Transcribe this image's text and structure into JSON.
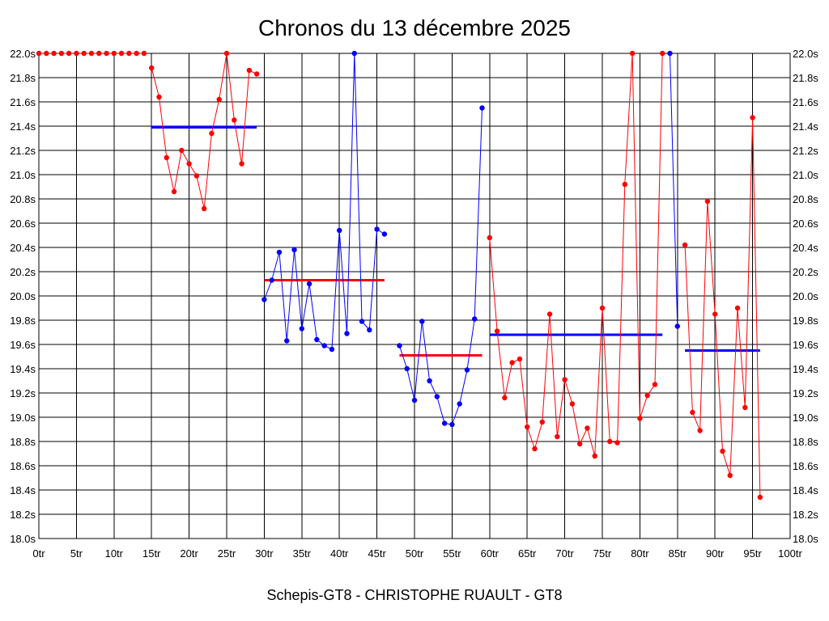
{
  "header": {
    "title": "Chronos du 13 décembre 2025"
  },
  "footer": {
    "caption": "Schepis-GT8 - CHRISTOPHE RUAULT - GT8"
  },
  "colors": {
    "red": "#ff0000",
    "blue": "#0000ff",
    "grid": "#000000",
    "background": "#ffffff"
  },
  "chart_data": {
    "type": "line",
    "title": "Chronos du 13 décembre 2025",
    "xlim": [
      0,
      100
    ],
    "ylim": [
      18.0,
      22.0
    ],
    "x_ticks": [
      "0tr",
      "5tr",
      "10tr",
      "15tr",
      "20tr",
      "25tr",
      "30tr",
      "35tr",
      "40tr",
      "45tr",
      "50tr",
      "55tr",
      "60tr",
      "65tr",
      "70tr",
      "75tr",
      "80tr",
      "85tr",
      "90tr",
      "95tr",
      "100tr"
    ],
    "y_ticks": [
      "18.0s",
      "18.2s",
      "18.4s",
      "18.6s",
      "18.8s",
      "19.0s",
      "19.2s",
      "19.4s",
      "19.6s",
      "19.8s",
      "20.0s",
      "20.2s",
      "20.4s",
      "20.6s",
      "20.8s",
      "21.0s",
      "21.2s",
      "21.4s",
      "21.6s",
      "21.8s",
      "22.0s"
    ],
    "grid": true,
    "series": [
      {
        "color": "#ff0000",
        "x": [
          0,
          1,
          2,
          3,
          4,
          5,
          6,
          7,
          8,
          9,
          10,
          11,
          12,
          13,
          14
        ],
        "values": [
          22.0,
          22.0,
          22.0,
          22.0,
          22.0,
          22.0,
          22.0,
          22.0,
          22.0,
          22.0,
          22.0,
          22.0,
          22.0,
          22.0,
          22.0
        ]
      },
      {
        "color": "#ff0000",
        "x": [
          15,
          16,
          17,
          18,
          19,
          20,
          21,
          22,
          23,
          24,
          25,
          26,
          27,
          28,
          29
        ],
        "values": [
          21.88,
          21.64,
          21.14,
          20.86,
          21.2,
          21.09,
          20.99,
          20.72,
          21.34,
          21.62,
          22.0,
          21.45,
          21.09,
          21.86,
          21.83
        ]
      },
      {
        "color": "#0000ff",
        "x": [
          30,
          31,
          32,
          33,
          34,
          35,
          36,
          37,
          38,
          39,
          40,
          41,
          42,
          43,
          44,
          45,
          46
        ],
        "values": [
          19.97,
          20.13,
          20.36,
          19.63,
          20.38,
          19.73,
          20.1,
          19.64,
          19.59,
          19.56,
          20.54,
          19.69,
          22.0,
          19.79,
          19.72,
          20.55,
          20.51
        ]
      },
      {
        "color": "#0000ff",
        "x": [
          48,
          49,
          50,
          51,
          52,
          53,
          54,
          55,
          56,
          57,
          58,
          59
        ],
        "values": [
          19.59,
          19.4,
          19.14,
          19.79,
          19.3,
          19.17,
          18.95,
          18.94,
          19.11,
          19.39,
          19.81,
          21.55
        ]
      },
      {
        "color": "#ff0000",
        "x": [
          60,
          61,
          62,
          63,
          64,
          65,
          66,
          67,
          68,
          69,
          70,
          71,
          72,
          73,
          74,
          75,
          76,
          77,
          78,
          79,
          80,
          81,
          82,
          83
        ],
        "values": [
          20.48,
          19.71,
          19.16,
          19.45,
          19.48,
          18.92,
          18.74,
          18.96,
          19.85,
          18.84,
          19.31,
          19.11,
          18.78,
          18.91,
          18.68,
          19.9,
          18.8,
          18.79,
          20.92,
          22.0,
          18.99,
          19.18,
          19.27,
          22.0
        ]
      },
      {
        "color": "#0000ff",
        "x": [
          84,
          85
        ],
        "values": [
          22.0,
          19.75
        ]
      },
      {
        "color": "#ff0000",
        "x": [
          86,
          87,
          88,
          89,
          90,
          91,
          92,
          93,
          94,
          95,
          96
        ],
        "values": [
          20.42,
          19.04,
          18.89,
          20.78,
          19.85,
          18.72,
          18.52,
          19.9,
          19.08,
          21.47,
          18.34
        ]
      }
    ],
    "averages": [
      {
        "color": "#0000ff",
        "x_from": 15,
        "x_to": 29,
        "value": 21.39
      },
      {
        "color": "#ff0000",
        "x_from": 30,
        "x_to": 46,
        "value": 20.13
      },
      {
        "color": "#ff0000",
        "x_from": 48,
        "x_to": 59,
        "value": 19.51
      },
      {
        "color": "#0000ff",
        "x_from": 60,
        "x_to": 83,
        "value": 19.68
      },
      {
        "color": "#0000ff",
        "x_from": 86,
        "x_to": 96,
        "value": 19.55
      }
    ]
  }
}
